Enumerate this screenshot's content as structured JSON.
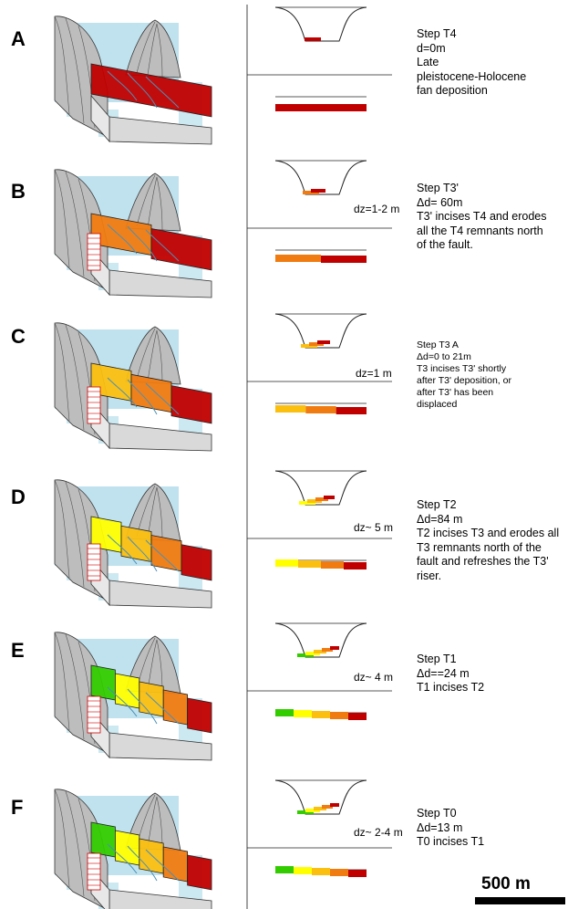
{
  "panels": [
    {
      "letter": "A",
      "step": "Step T4",
      "delta": "d=0m",
      "lines": [
        "Late",
        "pleistocene-Holocene",
        "fan deposition"
      ],
      "dz": "",
      "colors": [
        "#c00000"
      ]
    },
    {
      "letter": "B",
      "step": "Step T3'",
      "delta": "Δd= 60m",
      "lines": [
        "T3' incises T4 and erodes",
        "all the T4 remnants north",
        "of the fault."
      ],
      "dz": "dz=1-2 m",
      "colors": [
        "#f07b10",
        "#c00000"
      ]
    },
    {
      "letter": "C",
      "step": "Step T3 A",
      "delta": "Δd=0 to 21m",
      "lines": [
        "T3 incises T3' shortly",
        "after T3' deposition, or",
        "after T3' has been",
        "displaced"
      ],
      "dz": "dz=1 m",
      "colors": [
        "#fbbf10",
        "#f07b10",
        "#c00000"
      ]
    },
    {
      "letter": "D",
      "step": "Step T2",
      "delta": "Δd=84 m",
      "lines": [
        "T2 incises T3 and erodes all",
        "T3 remnants north of the",
        "fault and refreshes the T3'",
        "riser."
      ],
      "dz": "dz~ 5 m",
      "colors": [
        "#ffff00",
        "#fbbf10",
        "#f07b10",
        "#c00000"
      ]
    },
    {
      "letter": "E",
      "step": "Step T1",
      "delta": "Δd==24 m",
      "lines": [
        "T1 incises T2"
      ],
      "dz": "dz~ 4 m",
      "colors": [
        "#33cc00",
        "#ffff00",
        "#fbbf10",
        "#f07b10",
        "#c00000"
      ]
    },
    {
      "letter": "F",
      "step": "Step T0",
      "delta": "Δd=13 m",
      "lines": [
        "T0 incises T1"
      ],
      "dz": "dz~ 2-4 m",
      "colors": [
        "#33cc00",
        "#ffff00",
        "#fbbf10",
        "#f07b10",
        "#c00000"
      ]
    }
  ],
  "scale_bar": {
    "label": "500 m"
  }
}
